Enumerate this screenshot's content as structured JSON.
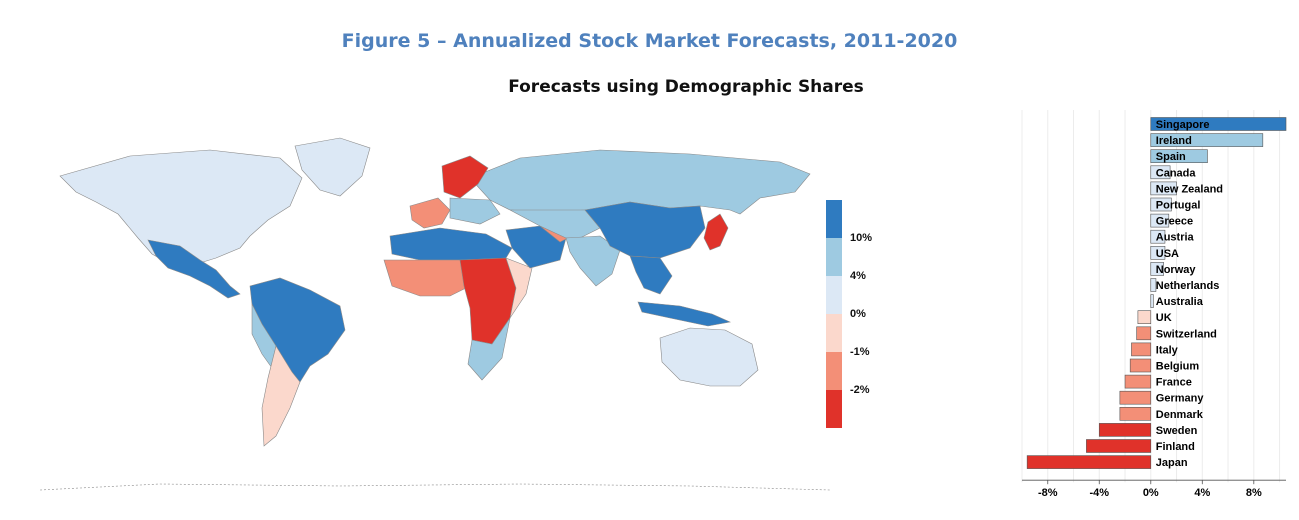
{
  "title": "Figure 5 – Annualized Stock Market Forecasts, 2011-2020",
  "subtitle": "Forecasts using Demographic Shares",
  "legend": {
    "labels": [
      "10%",
      "4%",
      "0%",
      "-1%",
      "-2%"
    ],
    "colors": [
      "#2f7bc0",
      "#9ecae1",
      "#dce8f5",
      "#fbd8cc",
      "#f38f77",
      "#e0322a"
    ]
  },
  "chart_data": [
    {
      "type": "map",
      "description_values": "choropleth by country using legend bins",
      "colors": {
        "band_high": "#2f7bc0",
        "band_mid_high": "#9ecae1",
        "band_low_pos": "#dce8f5",
        "band_low_neg": "#fbd8cc",
        "band_mid_neg": "#f38f77",
        "band_neg": "#e0322a",
        "border": "#8a8a8a"
      }
    },
    {
      "type": "bar",
      "orientation": "horizontal",
      "categories": [
        "Singapore",
        "Ireland",
        "Spain",
        "Canada",
        "New Zealand",
        "Portugal",
        "Greece",
        "Austria",
        "USA",
        "Norway",
        "Netherlands",
        "Australia",
        "UK",
        "Switzerland",
        "Italy",
        "Belgium",
        "France",
        "Germany",
        "Denmark",
        "Sweden",
        "Finland",
        "Japan"
      ],
      "values": [
        10.5,
        8.7,
        4.4,
        1.5,
        2.0,
        1.6,
        1.4,
        1.1,
        1.1,
        1.0,
        0.4,
        0.2,
        -1.0,
        -1.1,
        -1.5,
        -1.6,
        -2.0,
        -2.4,
        -2.4,
        -4.0,
        -5.0,
        -9.6
      ],
      "xticks": [
        "-8%",
        "-4%",
        "0%",
        "4%",
        "8%"
      ],
      "xlim": [
        -10,
        10.5
      ],
      "grid": true
    }
  ]
}
